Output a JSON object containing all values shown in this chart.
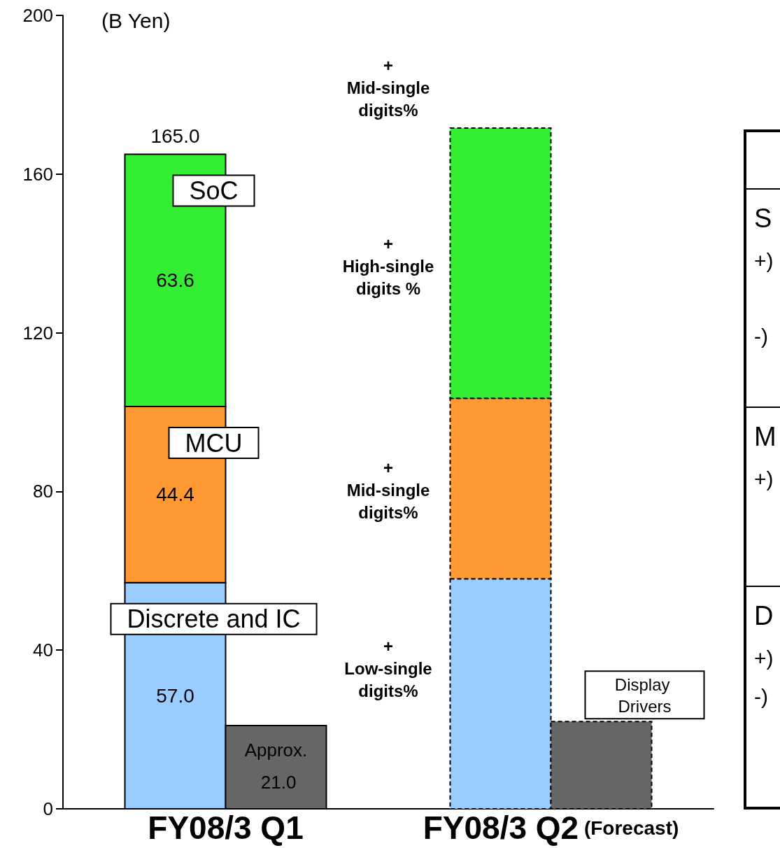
{
  "chart_data": {
    "type": "bar",
    "ylabel": "(B Yen)",
    "categories": [
      "FY08/3 Q1",
      "FY08/3 Q2 (Forecast)"
    ],
    "series": [
      {
        "name": "Discrete and IC",
        "color": "#99ccff",
        "base": [
          0,
          0
        ],
        "values": [
          57.0,
          58.0
        ],
        "value_labels": [
          "57.0",
          null
        ]
      },
      {
        "name": "MCU",
        "color": "#ff9933",
        "base": [
          57.0,
          58.0
        ],
        "values": [
          44.4,
          45.5
        ],
        "value_labels": [
          "44.4",
          null
        ]
      },
      {
        "name": "SoC",
        "color": "#33ee33",
        "base": [
          101.4,
          103.5
        ],
        "values": [
          63.6,
          68.1
        ],
        "value_labels": [
          "63.6",
          null
        ]
      },
      {
        "name": "Display Drivers",
        "color": "#666666",
        "values": [
          21.0,
          22.0
        ],
        "value_labels": [
          "Approx. 21.0",
          null
        ]
      }
    ],
    "ylim": [
      0,
      200
    ],
    "yticks": [
      0,
      40,
      80,
      120,
      160,
      200
    ],
    "grid": false,
    "legend": false,
    "annotations": [
      {
        "text": "165.0",
        "x": "FY08/3 Q1",
        "y": 165
      },
      "+\nMid-single\ndigits%",
      "+\nHigh-single\ndigits %",
      "+\nMid-single\ndigits%",
      "+\nLow-single\ndigits%",
      "S",
      "+)",
      "-)",
      "M",
      "+)",
      "D",
      "+)",
      "-)"
    ]
  }
}
